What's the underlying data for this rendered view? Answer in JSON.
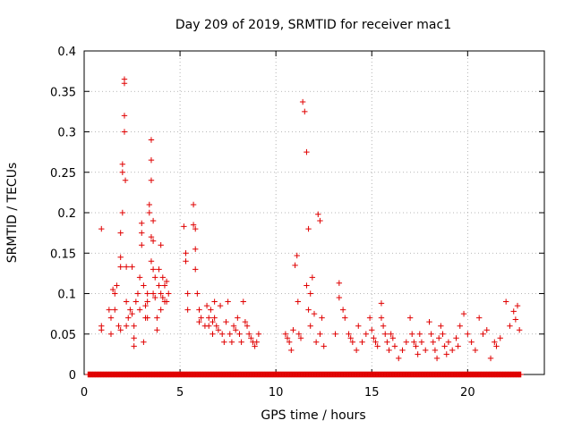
{
  "chart_data": {
    "type": "scatter",
    "title": "Day 209 of 2019, SRMTID for receiver mac1",
    "xlabel": "GPS time / hours",
    "ylabel": "SRMTID / TECUs",
    "xlim": [
      0,
      24
    ],
    "ylim": [
      0,
      0.4
    ],
    "xticks": [
      0,
      5,
      10,
      15,
      20
    ],
    "yticks": [
      0,
      0.05,
      0.1,
      0.15,
      0.2,
      0.25,
      0.3,
      0.35,
      0.4
    ],
    "xtick_labels": [
      "0",
      "5",
      "10",
      "15",
      "20"
    ],
    "ytick_labels": [
      "0",
      "0.05",
      "0.1",
      "0.15",
      "0.2",
      "0.25",
      "0.3",
      "0.35",
      "0.4"
    ],
    "grid": true,
    "marker": "plus",
    "color": "#e00000",
    "series": [
      {
        "name": "SRMTID",
        "points": [
          [
            0.9,
            0.18
          ],
          [
            0.9,
            0.06
          ],
          [
            0.9,
            0.055
          ],
          [
            1.3,
            0.08
          ],
          [
            1.4,
            0.07
          ],
          [
            1.4,
            0.05
          ],
          [
            1.5,
            0.105
          ],
          [
            1.6,
            0.1
          ],
          [
            1.6,
            0.08
          ],
          [
            1.7,
            0.11
          ],
          [
            1.8,
            0.06
          ],
          [
            1.9,
            0.133
          ],
          [
            1.9,
            0.145
          ],
          [
            1.9,
            0.175
          ],
          [
            1.9,
            0.055
          ],
          [
            2.0,
            0.26
          ],
          [
            2.0,
            0.25
          ],
          [
            2.0,
            0.2
          ],
          [
            2.1,
            0.36
          ],
          [
            2.1,
            0.365
          ],
          [
            2.1,
            0.32
          ],
          [
            2.1,
            0.3
          ],
          [
            2.15,
            0.24
          ],
          [
            2.2,
            0.133
          ],
          [
            2.2,
            0.09
          ],
          [
            2.2,
            0.06
          ],
          [
            2.3,
            0.07
          ],
          [
            2.4,
            0.08
          ],
          [
            2.5,
            0.075
          ],
          [
            2.5,
            0.133
          ],
          [
            2.6,
            0.06
          ],
          [
            2.6,
            0.045
          ],
          [
            2.6,
            0.035
          ],
          [
            2.7,
            0.09
          ],
          [
            2.8,
            0.1
          ],
          [
            2.9,
            0.12
          ],
          [
            2.9,
            0.08
          ],
          [
            3.0,
            0.187
          ],
          [
            3.0,
            0.175
          ],
          [
            3.0,
            0.16
          ],
          [
            3.1,
            0.11
          ],
          [
            3.1,
            0.04
          ],
          [
            3.2,
            0.085
          ],
          [
            3.2,
            0.07
          ],
          [
            3.3,
            0.1
          ],
          [
            3.3,
            0.09
          ],
          [
            3.3,
            0.07
          ],
          [
            3.4,
            0.21
          ],
          [
            3.4,
            0.2
          ],
          [
            3.5,
            0.29
          ],
          [
            3.5,
            0.265
          ],
          [
            3.5,
            0.24
          ],
          [
            3.5,
            0.17
          ],
          [
            3.5,
            0.14
          ],
          [
            3.6,
            0.19
          ],
          [
            3.6,
            0.165
          ],
          [
            3.6,
            0.13
          ],
          [
            3.6,
            0.1
          ],
          [
            3.7,
            0.12
          ],
          [
            3.7,
            0.095
          ],
          [
            3.8,
            0.07
          ],
          [
            3.8,
            0.055
          ],
          [
            3.9,
            0.13
          ],
          [
            3.9,
            0.11
          ],
          [
            4.0,
            0.16
          ],
          [
            4.0,
            0.1
          ],
          [
            4.0,
            0.08
          ],
          [
            4.1,
            0.12
          ],
          [
            4.1,
            0.095
          ],
          [
            4.2,
            0.11
          ],
          [
            4.2,
            0.09
          ],
          [
            4.3,
            0.115
          ],
          [
            4.3,
            0.09
          ],
          [
            4.4,
            0.1
          ],
          [
            5.2,
            0.183
          ],
          [
            5.3,
            0.15
          ],
          [
            5.3,
            0.14
          ],
          [
            5.4,
            0.1
          ],
          [
            5.4,
            0.08
          ],
          [
            5.7,
            0.21
          ],
          [
            5.7,
            0.185
          ],
          [
            5.8,
            0.18
          ],
          [
            5.8,
            0.155
          ],
          [
            5.8,
            0.13
          ],
          [
            5.9,
            0.1
          ],
          [
            6.0,
            0.08
          ],
          [
            6.0,
            0.065
          ],
          [
            6.1,
            0.07
          ],
          [
            6.3,
            0.06
          ],
          [
            6.4,
            0.085
          ],
          [
            6.5,
            0.07
          ],
          [
            6.5,
            0.06
          ],
          [
            6.6,
            0.08
          ],
          [
            6.7,
            0.065
          ],
          [
            6.7,
            0.05
          ],
          [
            6.8,
            0.09
          ],
          [
            6.8,
            0.07
          ],
          [
            6.9,
            0.06
          ],
          [
            7.0,
            0.055
          ],
          [
            7.1,
            0.085
          ],
          [
            7.2,
            0.05
          ],
          [
            7.3,
            0.04
          ],
          [
            7.4,
            0.065
          ],
          [
            7.5,
            0.09
          ],
          [
            7.6,
            0.05
          ],
          [
            7.7,
            0.04
          ],
          [
            7.8,
            0.06
          ],
          [
            7.9,
            0.055
          ],
          [
            8.0,
            0.07
          ],
          [
            8.1,
            0.05
          ],
          [
            8.2,
            0.04
          ],
          [
            8.3,
            0.09
          ],
          [
            8.4,
            0.065
          ],
          [
            8.5,
            0.06
          ],
          [
            8.6,
            0.05
          ],
          [
            8.7,
            0.045
          ],
          [
            8.8,
            0.04
          ],
          [
            8.9,
            0.035
          ],
          [
            9.0,
            0.04
          ],
          [
            9.1,
            0.05
          ],
          [
            10.5,
            0.05
          ],
          [
            10.6,
            0.045
          ],
          [
            10.7,
            0.04
          ],
          [
            10.8,
            0.03
          ],
          [
            10.9,
            0.055
          ],
          [
            11.0,
            0.135
          ],
          [
            11.1,
            0.147
          ],
          [
            11.15,
            0.09
          ],
          [
            11.2,
            0.05
          ],
          [
            11.3,
            0.045
          ],
          [
            11.4,
            0.337
          ],
          [
            11.5,
            0.325
          ],
          [
            11.6,
            0.275
          ],
          [
            11.6,
            0.11
          ],
          [
            11.7,
            0.18
          ],
          [
            11.7,
            0.08
          ],
          [
            11.8,
            0.1
          ],
          [
            11.8,
            0.06
          ],
          [
            11.9,
            0.12
          ],
          [
            12.0,
            0.075
          ],
          [
            12.1,
            0.04
          ],
          [
            12.2,
            0.198
          ],
          [
            12.3,
            0.19
          ],
          [
            12.3,
            0.05
          ],
          [
            12.4,
            0.07
          ],
          [
            12.5,
            0.035
          ],
          [
            13.1,
            0.05
          ],
          [
            13.3,
            0.113
          ],
          [
            13.3,
            0.095
          ],
          [
            13.5,
            0.08
          ],
          [
            13.6,
            0.07
          ],
          [
            13.8,
            0.05
          ],
          [
            13.9,
            0.045
          ],
          [
            14.0,
            0.04
          ],
          [
            14.2,
            0.03
          ],
          [
            14.3,
            0.06
          ],
          [
            14.5,
            0.04
          ],
          [
            14.7,
            0.05
          ],
          [
            14.9,
            0.07
          ],
          [
            15.0,
            0.055
          ],
          [
            15.1,
            0.045
          ],
          [
            15.2,
            0.04
          ],
          [
            15.3,
            0.035
          ],
          [
            15.5,
            0.088
          ],
          [
            15.5,
            0.07
          ],
          [
            15.6,
            0.06
          ],
          [
            15.7,
            0.05
          ],
          [
            15.8,
            0.04
          ],
          [
            15.9,
            0.03
          ],
          [
            16.0,
            0.05
          ],
          [
            16.1,
            0.045
          ],
          [
            16.2,
            0.035
          ],
          [
            16.4,
            0.02
          ],
          [
            16.6,
            0.03
          ],
          [
            16.8,
            0.04
          ],
          [
            17.0,
            0.07
          ],
          [
            17.1,
            0.05
          ],
          [
            17.2,
            0.04
          ],
          [
            17.3,
            0.035
          ],
          [
            17.4,
            0.025
          ],
          [
            17.5,
            0.05
          ],
          [
            17.6,
            0.04
          ],
          [
            17.8,
            0.03
          ],
          [
            18.0,
            0.065
          ],
          [
            18.1,
            0.05
          ],
          [
            18.2,
            0.04
          ],
          [
            18.3,
            0.03
          ],
          [
            18.4,
            0.02
          ],
          [
            18.5,
            0.045
          ],
          [
            18.6,
            0.06
          ],
          [
            18.7,
            0.05
          ],
          [
            18.8,
            0.035
          ],
          [
            18.9,
            0.025
          ],
          [
            19.0,
            0.04
          ],
          [
            19.2,
            0.03
          ],
          [
            19.4,
            0.045
          ],
          [
            19.5,
            0.035
          ],
          [
            19.6,
            0.06
          ],
          [
            19.8,
            0.075
          ],
          [
            20.0,
            0.05
          ],
          [
            20.2,
            0.04
          ],
          [
            20.4,
            0.03
          ],
          [
            20.6,
            0.07
          ],
          [
            20.8,
            0.05
          ],
          [
            21.0,
            0.055
          ],
          [
            21.2,
            0.02
          ],
          [
            21.4,
            0.04
          ],
          [
            21.5,
            0.035
          ],
          [
            21.7,
            0.045
          ],
          [
            22.0,
            0.09
          ],
          [
            22.2,
            0.06
          ],
          [
            22.4,
            0.078
          ],
          [
            22.5,
            0.068
          ],
          [
            22.6,
            0.085
          ],
          [
            22.7,
            0.055
          ]
        ]
      }
    ],
    "zero_band": [
      [
        0.2,
        22.8
      ]
    ]
  }
}
